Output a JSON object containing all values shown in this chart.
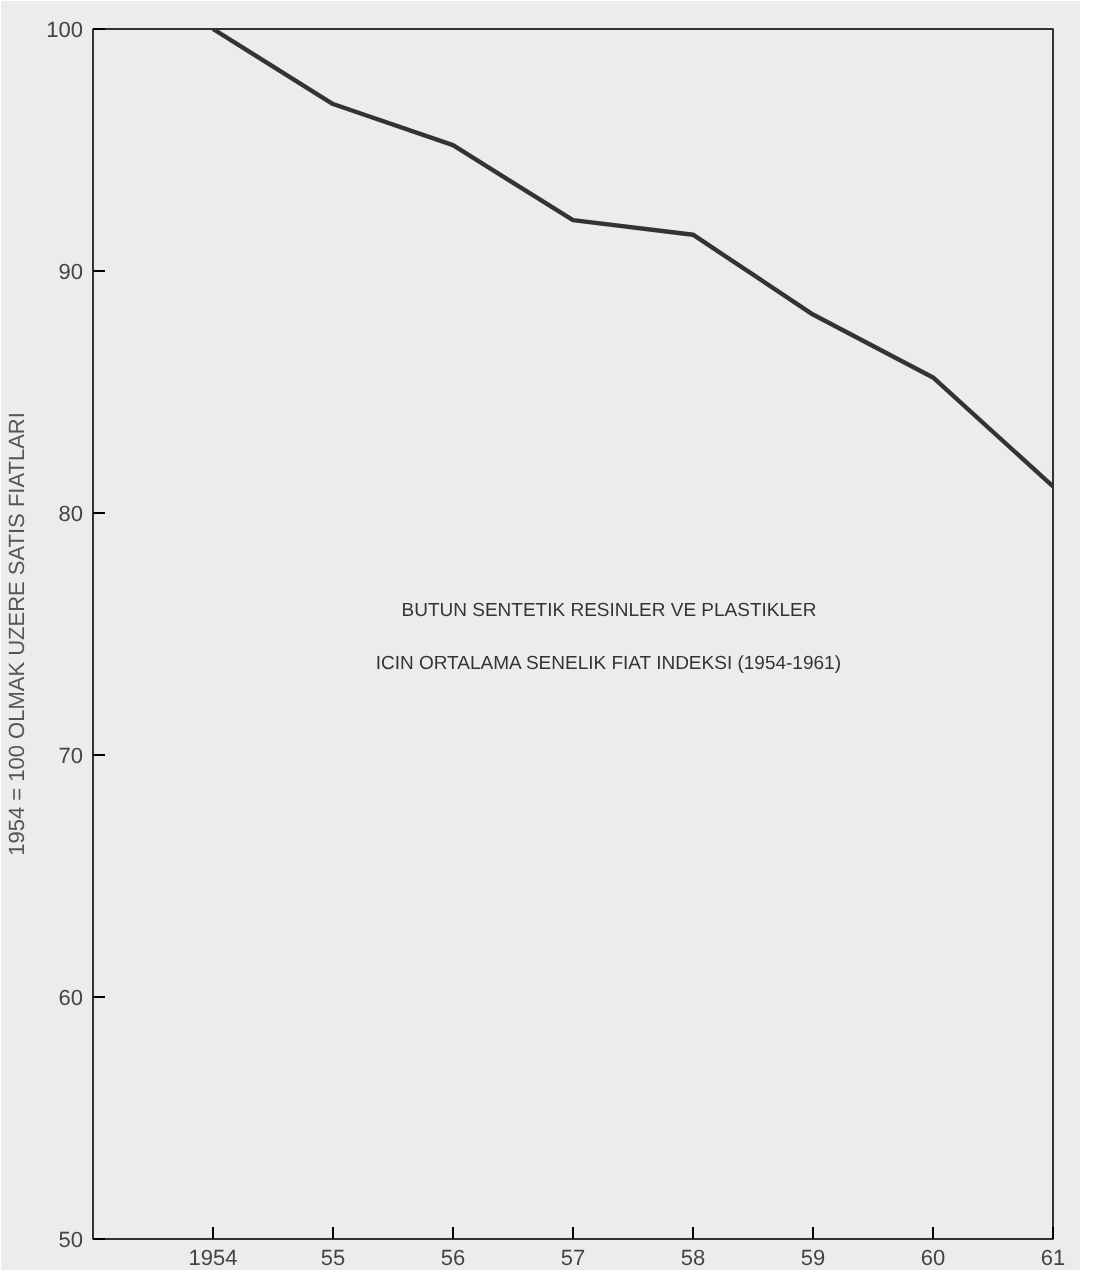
{
  "chart_data": {
    "type": "line",
    "x": [
      1954,
      1955,
      1956,
      1957,
      1958,
      1959,
      1960,
      1961
    ],
    "series": [
      {
        "color": "#333333",
        "values": [
          100,
          96.9,
          95.2,
          92.1,
          91.5,
          88.2,
          85.6,
          81.1
        ]
      }
    ],
    "xlim": [
      1953,
      1961
    ],
    "ylim": [
      50,
      100
    ],
    "xticks": [
      1954,
      {
        "value": 1955,
        "label": "55"
      },
      {
        "value": 1956,
        "label": "56"
      },
      {
        "value": 1957,
        "label": "57"
      },
      {
        "value": 1958,
        "label": "58"
      },
      {
        "value": 1959,
        "label": "59"
      },
      {
        "value": 1960,
        "label": "60"
      },
      {
        "value": 1961,
        "label": "61"
      }
    ],
    "yticks": [
      50,
      60,
      70,
      80,
      90,
      100
    ],
    "ylabel": "1954 = 100 OLMAK UZERE SATIS FIATLARI",
    "annotations": [
      "BUTUN SENTETIK RESINLER VE PLASTIKLER",
      "ICIN ORTALAMA SENELIK FIAT INDEKSI (1954-1961)"
    ],
    "grid": false,
    "marker": "none",
    "line_style": "solid"
  }
}
